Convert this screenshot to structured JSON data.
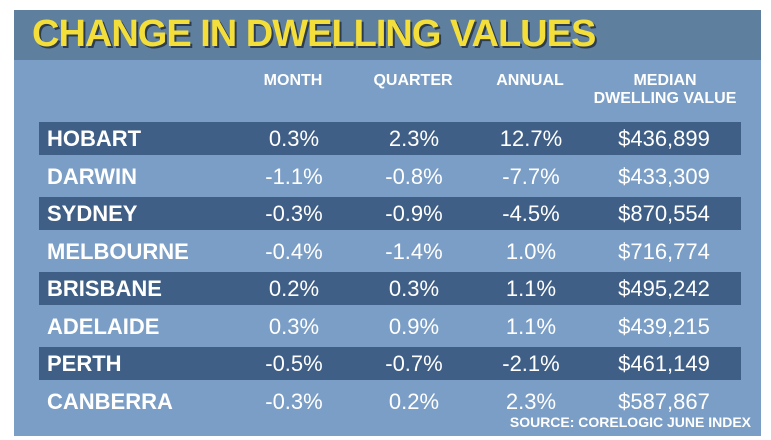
{
  "chart_data": {
    "type": "table",
    "title": "CHANGE IN DWELLING VALUES",
    "columns": [
      "",
      "MONTH",
      "QUARTER",
      "ANNUAL",
      "MEDIAN DWELLING VALUE"
    ],
    "rows": [
      {
        "city": "HOBART",
        "month": "0.3%",
        "quarter": "2.3%",
        "annual": "12.7%",
        "median": "$436,899"
      },
      {
        "city": "DARWIN",
        "month": "-1.1%",
        "quarter": "-0.8%",
        "annual": "-7.7%",
        "median": "$433,309"
      },
      {
        "city": "SYDNEY",
        "month": "-0.3%",
        "quarter": "-0.9%",
        "annual": "-4.5%",
        "median": "$870,554"
      },
      {
        "city": "MELBOURNE",
        "month": "-0.4%",
        "quarter": "-1.4%",
        "annual": "1.0%",
        "median": "$716,774"
      },
      {
        "city": "BRISBANE",
        "month": "0.2%",
        "quarter": "0.3%",
        "annual": "1.1%",
        "median": "$495,242"
      },
      {
        "city": "ADELAIDE",
        "month": "0.3%",
        "quarter": "0.9%",
        "annual": "1.1%",
        "median": "$439,215"
      },
      {
        "city": "PERTH",
        "month": "-0.5%",
        "quarter": "-0.7%",
        "annual": "-2.1%",
        "median": "$461,149"
      },
      {
        "city": "CANBERRA",
        "month": "-0.3%",
        "quarter": "0.2%",
        "annual": "2.3%",
        "median": "$587,867"
      }
    ],
    "source": "SOURCE: CORELOGIC JUNE INDEX"
  },
  "colors": {
    "panel": "#7b9ec6",
    "title_bar": "#5f7f9f",
    "title_text": "#f4df3a",
    "row_shade": "#3f5f86",
    "text": "#ffffff"
  }
}
